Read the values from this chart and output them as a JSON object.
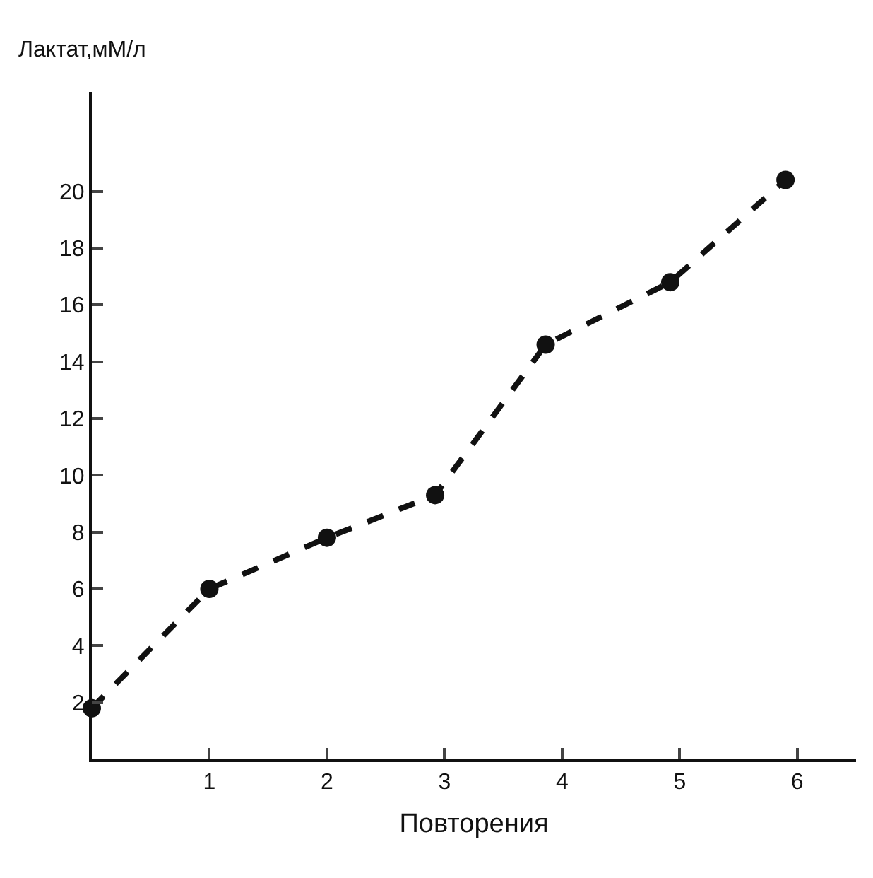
{
  "chart_data": {
    "type": "line",
    "xlabel": "Повторения",
    "ylabel": "Лактат,мМ/л",
    "x": [
      0,
      1,
      2,
      2.92,
      3.86,
      4.92,
      5.9
    ],
    "series": [
      {
        "color": "#111111",
        "values": [
          1.8,
          6.0,
          7.8,
          9.3,
          14.6,
          16.8,
          20.4
        ]
      }
    ],
    "xlim": [
      0,
      6.5
    ],
    "ylim": [
      0,
      23.5
    ],
    "xticks": [
      1,
      2,
      3,
      4,
      5,
      6
    ],
    "yticks": [
      2,
      4,
      6,
      8,
      10,
      12,
      14,
      16,
      18,
      20
    ],
    "marker": "circle",
    "line_style": "dashed"
  }
}
